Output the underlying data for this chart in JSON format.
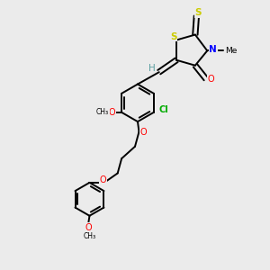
{
  "bg_color": "#ebebeb",
  "bond_color": "#000000",
  "bond_width": 1.4,
  "figsize": [
    3.0,
    3.0
  ],
  "dpi": 100,
  "xlim": [
    0,
    10
  ],
  "ylim": [
    0,
    10
  ]
}
